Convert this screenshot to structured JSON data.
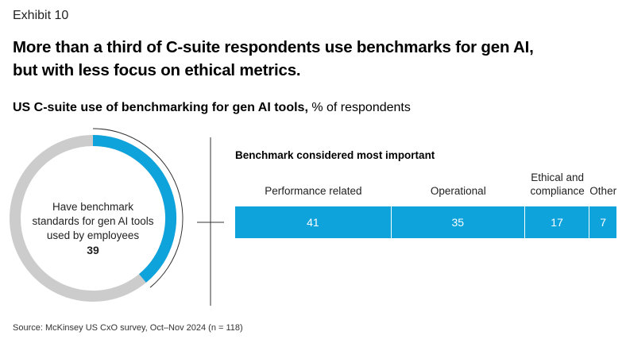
{
  "exhibit": "Exhibit 10",
  "headline": {
    "line1": "More than a third of C-suite respondents use benchmarks for gen AI,",
    "line2": "but with less focus on ethical metrics."
  },
  "subtitle": {
    "bold": "US C-suite use of benchmarking for gen AI tools,",
    "unit": " % of respondents"
  },
  "source": "Source: McKinsey US CxO survey, Oct–Nov 2024 (n = 118)",
  "colors": {
    "accent": "#0fa3dc",
    "track": "#cccccc",
    "divider": "#333333"
  },
  "chart_data": [
    {
      "type": "pie",
      "variant": "donut",
      "label_lines": [
        "Have benchmark",
        "standards for gen AI tools",
        "used by employees"
      ],
      "value": 39,
      "value_label": "39",
      "max": 100
    },
    {
      "type": "bar",
      "orientation": "horizontal-stacked",
      "title": "Benchmark considered most important",
      "categories": [
        [
          "Performance related"
        ],
        [
          "Operational"
        ],
        [
          "Ethical and",
          "compliance"
        ],
        [
          "Other"
        ]
      ],
      "values": [
        41,
        35,
        17,
        7
      ],
      "value_labels": [
        "41",
        "35",
        "17",
        "7"
      ],
      "total": 100
    }
  ]
}
